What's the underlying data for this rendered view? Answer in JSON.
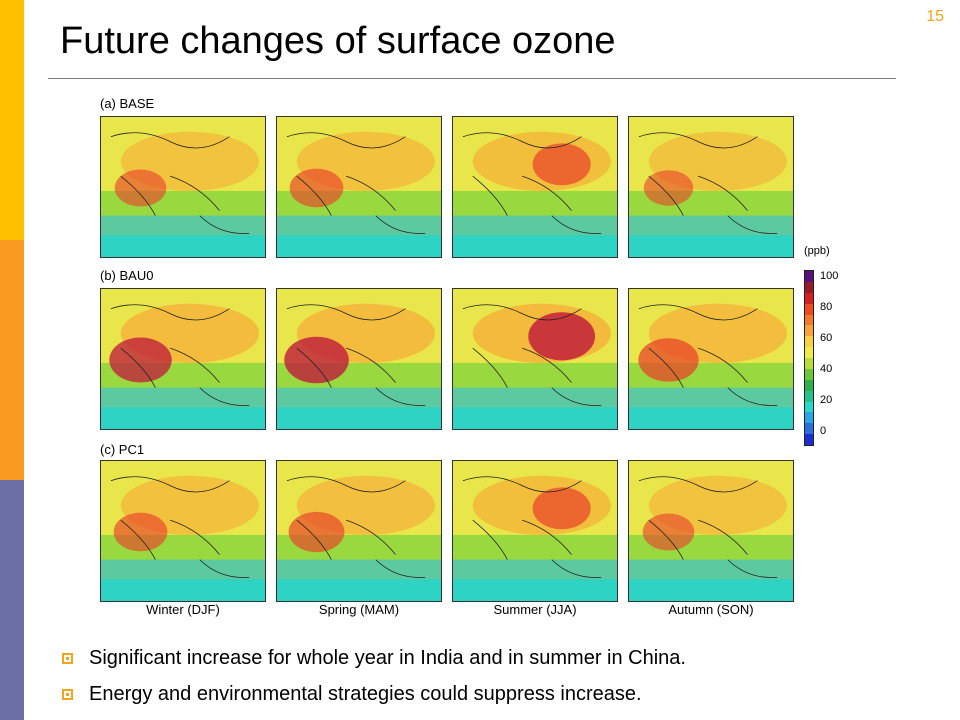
{
  "slide": {
    "number": "15",
    "title": "Future changes of surface ozone"
  },
  "figure": {
    "rows": [
      {
        "label": "(a) BASE",
        "intensity": [
          0.55,
          0.6,
          0.7,
          0.5
        ]
      },
      {
        "label": "(b) BAU0",
        "intensity": [
          0.8,
          0.85,
          0.9,
          0.75
        ]
      },
      {
        "label": "(c) PC1",
        "intensity": [
          0.6,
          0.65,
          0.7,
          0.55
        ]
      }
    ],
    "seasons": [
      "Winter (DJF)",
      "Spring (MAM)",
      "Summer (JJA)",
      "Autumn (SON)"
    ],
    "colorbar": {
      "unit": "(ppb)",
      "ticks": [
        "100",
        "80",
        "60",
        "40",
        "20",
        "0"
      ],
      "colors": [
        "#5a0f7a",
        "#9b1a2a",
        "#d42020",
        "#f04a20",
        "#f37a2a",
        "#f6a43a",
        "#f9d040",
        "#f2ea4a",
        "#b7dd3a",
        "#6cc73a",
        "#2fb04a",
        "#28c08c",
        "#27d8c8",
        "#2aa6e6",
        "#2a6ee0",
        "#1a2fd0"
      ]
    }
  },
  "bullets": [
    "Significant increase for whole year in India and in summer in China.",
    "Energy and environmental strategies could suppress increase."
  ],
  "icons": {
    "bullet": "square-bullet-icon"
  },
  "theme": {
    "accent": "#f2a51a",
    "bar_top": "#ffc000",
    "bar_mid": "#f79a1e",
    "bar_bottom": "#6b6fa5"
  }
}
